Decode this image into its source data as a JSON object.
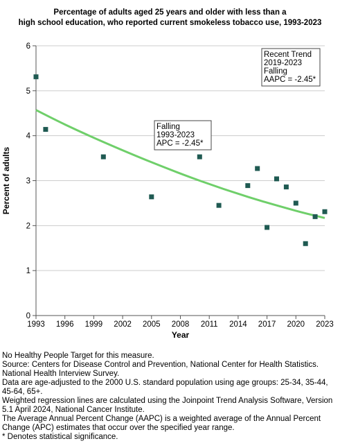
{
  "title": {
    "line1": "Percentage of adults aged 25 years and older with less than a",
    "line2": "high school education, who reported current smokeless tobacco use, 1993-2023"
  },
  "chart_data": {
    "type": "scatter",
    "xlabel": "Year",
    "ylabel": "Percent of adults",
    "xlim": [
      1993,
      2023
    ],
    "ylim": [
      0,
      6
    ],
    "x_ticks": [
      1993,
      1996,
      1999,
      2002,
      2005,
      2008,
      2011,
      2014,
      2017,
      2020,
      2023
    ],
    "y_ticks": [
      0,
      1,
      2,
      3,
      4,
      5,
      6
    ],
    "grid": true,
    "points": [
      {
        "x": 1993,
        "y": 5.31
      },
      {
        "x": 1994,
        "y": 4.14
      },
      {
        "x": 2000,
        "y": 3.53
      },
      {
        "x": 2005,
        "y": 2.64
      },
      {
        "x": 2010,
        "y": 3.53
      },
      {
        "x": 2012,
        "y": 2.45
      },
      {
        "x": 2015,
        "y": 2.89
      },
      {
        "x": 2016,
        "y": 3.27
      },
      {
        "x": 2017,
        "y": 1.96
      },
      {
        "x": 2018,
        "y": 3.04
      },
      {
        "x": 2019,
        "y": 2.86
      },
      {
        "x": 2020,
        "y": 2.5
      },
      {
        "x": 2021,
        "y": 1.6
      },
      {
        "x": 2022,
        "y": 2.2
      },
      {
        "x": 2023,
        "y": 2.31
      }
    ],
    "trend": {
      "x": [
        1993,
        1996,
        2000,
        2005,
        2010,
        2015,
        2020,
        2023
      ],
      "y": [
        4.57,
        4.25,
        3.86,
        3.41,
        3.0,
        2.64,
        2.33,
        2.17
      ]
    },
    "annotations": {
      "main": [
        "Falling",
        "1993-2023",
        "APC = -2.45*"
      ],
      "recent": [
        "Recent Trend",
        "2019-2023",
        "Falling",
        "AAPC = -2.45*"
      ]
    },
    "colors": {
      "points": "#1f5a52",
      "trend": "#6fcf6a",
      "grid": "#cccccc"
    }
  },
  "notes": [
    "No Healthy People Target for this measure.",
    "Source: Centers for Disease Control and Prevention, National Center for Health Statistics. National Health Interview Survey.",
    "Data are age-adjusted to the 2000 U.S. standard population using age groups: 25-34, 35-44, 45-64, 65+.",
    "Weighted regression lines are calculated using the Joinpoint Trend Analysis Software, Version 5.1 April 2024, National Cancer Institute.",
    "The Average Annual Percent Change (AAPC) is a weighted average of the Annual Percent Change (APC) estimates that occur over the specified year range.",
    "* Denotes statistical significance."
  ]
}
